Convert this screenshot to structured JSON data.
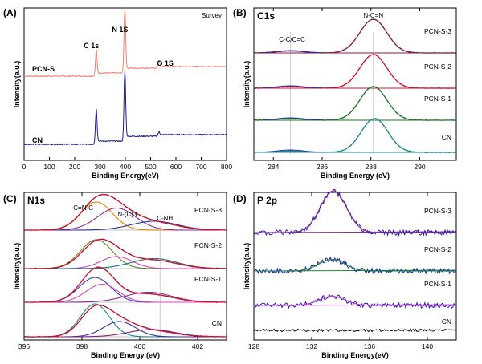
{
  "chart_data": [
    {
      "type": "line",
      "panel_label": "(A)",
      "title": "Survey",
      "xlabel": "Binding Energy(eV)",
      "ylabel": "Intensity(a.u.)",
      "xlim": [
        0,
        800
      ],
      "xticks": [
        0,
        100,
        200,
        300,
        400,
        500,
        600,
        700,
        800
      ],
      "peak_labels": [
        {
          "text": "C 1s",
          "x": 285
        },
        {
          "text": "N 1S",
          "x": 398
        },
        {
          "text": "O 1S",
          "x": 532
        }
      ],
      "series": [
        {
          "name": "PCN-S",
          "color": "#f08070",
          "peaks": [
            {
              "x": 285,
              "h": 0.38
            },
            {
              "x": 398,
              "h": 1.0
            },
            {
              "x": 532,
              "h": 0.12
            }
          ],
          "baseline": 0.0
        },
        {
          "name": "CN",
          "color": "#1a1a9e",
          "peaks": [
            {
              "x": 285,
              "h": 0.48
            },
            {
              "x": 398,
              "h": 1.0
            },
            {
              "x": 532,
              "h": 0.05
            }
          ],
          "baseline": 0.0
        }
      ]
    },
    {
      "type": "line",
      "panel_label": "(B)",
      "title": "C1s",
      "xlabel": "Binding Energy (eV)",
      "ylabel": "Intensity(a.u.)",
      "xlim": [
        283.2,
        291.5
      ],
      "xticks": [
        284,
        286,
        288,
        290
      ],
      "annotations": [
        {
          "text": "C-C/C=C",
          "x": 284.7
        },
        {
          "text": "N-C=N",
          "x": 288.1
        }
      ],
      "reference_lines": [
        284.7,
        288.1
      ],
      "series": [
        {
          "name": "PCN-S-3",
          "color": "#8b1a3a",
          "peaks": [
            {
              "center": 288.1,
              "amp": 1.0,
              "sigma": 0.55
            },
            {
              "center": 284.7,
              "amp": 0.06,
              "sigma": 0.55
            }
          ]
        },
        {
          "name": "PCN-S-2",
          "color": "#d01030",
          "peaks": [
            {
              "center": 288.1,
              "amp": 1.0,
              "sigma": 0.55
            },
            {
              "center": 284.7,
              "amp": 0.05,
              "sigma": 0.55
            }
          ]
        },
        {
          "name": "PCN-S-1",
          "color": "#1a7a2a",
          "peaks": [
            {
              "center": 288.1,
              "amp": 1.0,
              "sigma": 0.55
            },
            {
              "center": 284.7,
              "amp": 0.05,
              "sigma": 0.55
            }
          ]
        },
        {
          "name": "CN",
          "color": "#1a8a8a",
          "peaks": [
            {
              "center": 288.15,
              "amp": 1.0,
              "sigma": 0.55
            },
            {
              "center": 284.7,
              "amp": 0.04,
              "sigma": 0.55
            }
          ]
        }
      ]
    },
    {
      "type": "line",
      "panel_label": "(C)",
      "title": "N1s",
      "xlabel": "Binding Energy (eV)",
      "ylabel": "Intensity(a.u.)",
      "xlim": [
        396,
        403
      ],
      "xticks": [
        396,
        398,
        400,
        402
      ],
      "annotations": [
        {
          "text": "C=N-C",
          "x": 398.6
        },
        {
          "text": "N-(C)3",
          "x": 399.4
        },
        {
          "text": "C-NH",
          "x": 400.7
        }
      ],
      "reference_lines": [
        400.7
      ],
      "series": [
        {
          "name": "PCN-S-3",
          "components": [
            {
              "color": "#e08000",
              "center": 398.5,
              "amp": 0.7,
              "sigma": 0.55
            },
            {
              "color": "#8a2a8a",
              "center": 399.2,
              "amp": 0.55,
              "sigma": 0.65
            },
            {
              "color": "#3030a0",
              "center": 400.5,
              "amp": 0.22,
              "sigma": 0.8
            }
          ],
          "envelope_color": "#d01030"
        },
        {
          "name": "PCN-S-2",
          "components": [
            {
              "color": "#5a8a1a",
              "center": 398.5,
              "amp": 0.72,
              "sigma": 0.55
            },
            {
              "color": "#e040c0",
              "center": 399.2,
              "amp": 0.3,
              "sigma": 0.55
            },
            {
              "color": "#1a6a8a",
              "center": 400.5,
              "amp": 0.25,
              "sigma": 0.8
            }
          ],
          "envelope_color": "#d01030"
        },
        {
          "name": "PCN-S-1",
          "components": [
            {
              "color": "#3040b0",
              "center": 398.45,
              "amp": 0.62,
              "sigma": 0.55
            },
            {
              "color": "#e040c0",
              "center": 398.7,
              "amp": 0.45,
              "sigma": 0.55
            },
            {
              "color": "#8a2a8a",
              "center": 400.3,
              "amp": 0.25,
              "sigma": 0.8
            }
          ],
          "envelope_color": "#d01030"
        },
        {
          "name": "CN",
          "components": [
            {
              "color": "#1a8a8a",
              "center": 398.45,
              "amp": 0.82,
              "sigma": 0.5
            },
            {
              "color": "#3030a0",
              "center": 399.3,
              "amp": 0.38,
              "sigma": 0.55
            },
            {
              "color": "#8a1a8a",
              "center": 400.4,
              "amp": 0.18,
              "sigma": 0.8
            }
          ],
          "envelope_color": "#d01030"
        }
      ]
    },
    {
      "type": "line",
      "panel_label": "(D)",
      "title": "P 2p",
      "xlabel": "Binding Energy(eV)",
      "ylabel": "Intensity(a.u.)",
      "xlim": [
        128,
        142
      ],
      "xticks": [
        128,
        132,
        136,
        140
      ],
      "series": [
        {
          "name": "PCN-S-3",
          "color": "#2020c0",
          "fit_color": "#8a2a8a",
          "peak": {
            "center": 133.5,
            "amp": 1.0,
            "sigma": 0.9
          }
        },
        {
          "name": "PCN-S-2",
          "color": "#2020c0",
          "fit_color": "#1a8a2a",
          "peak": {
            "center": 133.4,
            "amp": 0.28,
            "sigma": 0.9
          }
        },
        {
          "name": "PCN-S-1",
          "color": "#2020c0",
          "fit_color": "#c040c0",
          "peak": {
            "center": 133.4,
            "amp": 0.22,
            "sigma": 0.9
          }
        },
        {
          "name": "CN",
          "color": "#111111",
          "fit_color": null,
          "peak": null
        }
      ]
    }
  ]
}
